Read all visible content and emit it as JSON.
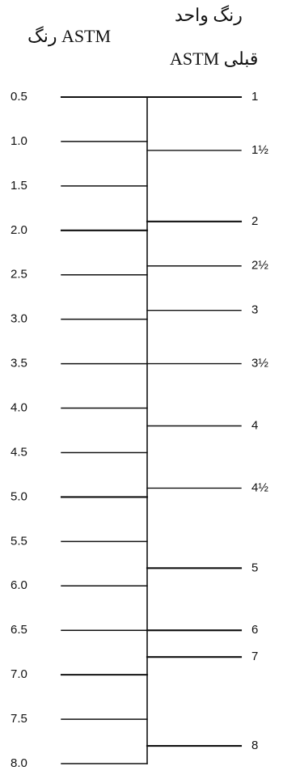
{
  "headers": {
    "left": "رنگ ASTM",
    "right_line1": "رنگ واحد",
    "right_line2": "ASTM قبلی"
  },
  "left_scale": {
    "labels": [
      "0.5",
      "1.0",
      "1.5",
      "2.0",
      "2.5",
      "3.0",
      "3.5",
      "4.0",
      "4.5",
      "5.0",
      "5.5",
      "6.0",
      "6.5",
      "7.0",
      "7.5",
      "8.0"
    ],
    "values": [
      0.5,
      1.0,
      1.5,
      2.0,
      2.5,
      3.0,
      3.5,
      4.0,
      4.5,
      5.0,
      5.5,
      6.0,
      6.5,
      7.0,
      7.5,
      8.0
    ]
  },
  "right_scale": {
    "labels": [
      "1",
      "1½",
      "2",
      "2½",
      "3",
      "3½",
      "4",
      "4½",
      "5",
      "6",
      "7",
      "8"
    ],
    "astm_equivalent": [
      0.5,
      1.1,
      1.9,
      2.4,
      2.9,
      3.5,
      4.2,
      4.9,
      5.8,
      6.5,
      6.8,
      7.8
    ]
  },
  "colors": {
    "line": "#111111",
    "text": "#111111"
  }
}
